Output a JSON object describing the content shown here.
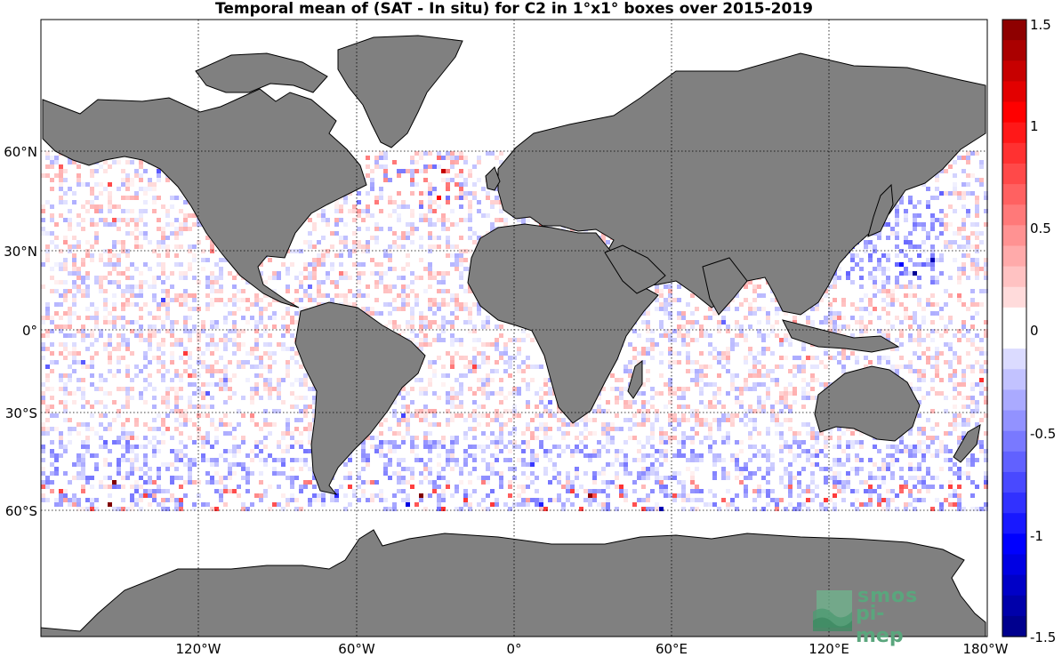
{
  "title": "Temporal mean of (SAT - In situ) for C2 in 1°x1° boxes over 2015-2019",
  "lat_labels": [
    "60°N",
    "30°N",
    "0°",
    "30°S",
    "60°S"
  ],
  "lon_labels": [
    "120°W",
    "60°W",
    "0°",
    "60°E",
    "120°E",
    "180°W"
  ],
  "colorbar": {
    "tick_labels": [
      "1.5",
      "1",
      "0.5",
      "0",
      "-0.5",
      "-1",
      "-1.5"
    ],
    "min": -1.5,
    "max": 1.5,
    "step": 0.1
  },
  "colors": {
    "land": "#808080",
    "ocean": "#ffffff",
    "negative": "#0000ff",
    "positive": "#ff0000",
    "extreme_negative": "#000080",
    "extreme_positive": "#800000"
  },
  "logo": {
    "line1": "smos",
    "line2": "pi-mep"
  }
}
